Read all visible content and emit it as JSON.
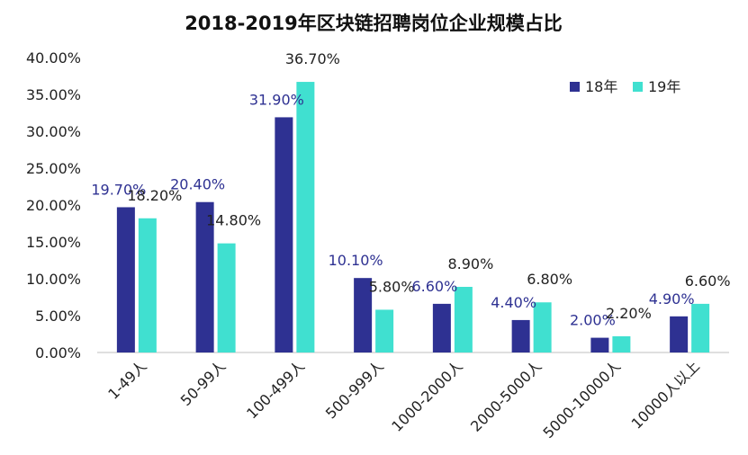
{
  "colors": {
    "series_18": "#2e3192",
    "series_19": "#40e0d0",
    "label_18": "#2e3192",
    "label_19": "#222222",
    "axis": "#bfbfbf"
  },
  "chart_data": {
    "type": "bar",
    "title": "2018-2019年区块链招聘岗位企业规模占比",
    "categories": [
      "1-49人",
      "50-99人",
      "100-499人",
      "500-999人",
      "1000-2000人",
      "2000-5000人",
      "5000-10000人",
      "10000人以上"
    ],
    "series": [
      {
        "name": "18年",
        "values": [
          19.7,
          20.4,
          31.9,
          10.1,
          6.6,
          4.4,
          2.0,
          4.9
        ],
        "labels": [
          "19.70%",
          "20.40%",
          "31.90%",
          "10.10%",
          "6.60%",
          "4.40%",
          "2.00%",
          "4.90%"
        ]
      },
      {
        "name": "19年",
        "values": [
          18.2,
          14.8,
          36.7,
          5.8,
          8.9,
          6.8,
          2.2,
          6.6
        ],
        "labels": [
          "18.20%",
          "14.80%",
          "36.70%",
          "5.80%",
          "8.90%",
          "6.80%",
          "2.20%",
          "6.60%"
        ]
      }
    ],
    "ylim": [
      0,
      40
    ],
    "yticks": [
      0,
      5,
      10,
      15,
      20,
      25,
      30,
      35,
      40
    ],
    "ytick_labels": [
      "0.00%",
      "5.00%",
      "10.00%",
      "15.00%",
      "20.00%",
      "25.00%",
      "30.00%",
      "35.00%",
      "40.00%"
    ],
    "legend_position": "top-right",
    "grid": false
  }
}
